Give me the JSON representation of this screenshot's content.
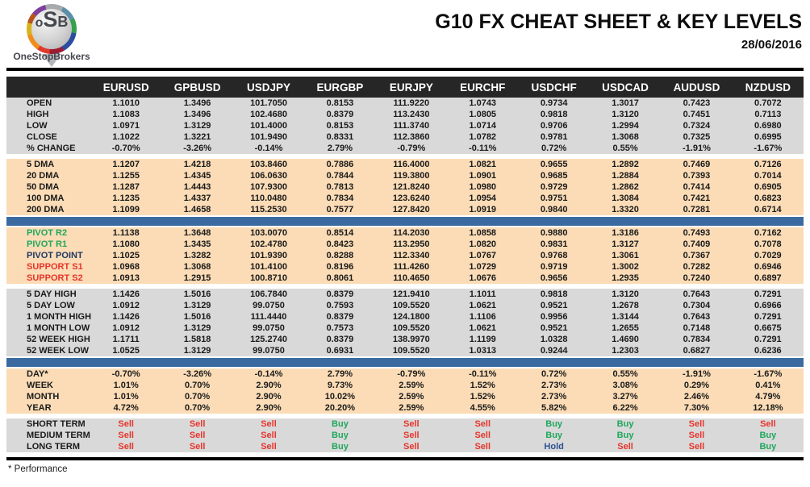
{
  "brand": {
    "logo_letters": [
      "o",
      "S",
      "B"
    ],
    "caption": "OneStopBrokers"
  },
  "header": {
    "title": "G10 FX CHEAT SHEET & KEY LEVELS",
    "date": "28/06/2016"
  },
  "table": {
    "columns": [
      "EURUSD",
      "GPBUSD",
      "USDJPY",
      "EURGBP",
      "EURJPY",
      "EURCHF",
      "USDCHF",
      "USDCAD",
      "AUDUSD",
      "NZDUSD"
    ],
    "sections": [
      {
        "id": "ohlc",
        "bg": "gray",
        "rows": [
          {
            "label": "OPEN",
            "values": [
              "1.1010",
              "1.3496",
              "101.7050",
              "0.8153",
              "111.9220",
              "1.0743",
              "0.9734",
              "1.3017",
              "0.7423",
              "0.7072"
            ]
          },
          {
            "label": "HIGH",
            "values": [
              "1.1083",
              "1.3496",
              "102.4680",
              "0.8379",
              "113.2430",
              "1.0805",
              "0.9818",
              "1.3120",
              "0.7451",
              "0.7113"
            ]
          },
          {
            "label": "LOW",
            "values": [
              "1.0971",
              "1.3129",
              "101.4000",
              "0.8153",
              "111.3740",
              "1.0714",
              "0.9706",
              "1.2994",
              "0.7324",
              "0.6980"
            ]
          },
          {
            "label": "CLOSE",
            "values": [
              "1.1022",
              "1.3221",
              "101.9490",
              "0.8331",
              "112.3860",
              "1.0782",
              "0.9781",
              "1.3068",
              "0.7325",
              "0.6995"
            ]
          },
          {
            "label": "% CHANGE",
            "values": [
              "-0.70%",
              "-3.26%",
              "-0.14%",
              "2.79%",
              "-0.79%",
              "-0.11%",
              "0.72%",
              "0.55%",
              "-1.91%",
              "-1.67%"
            ]
          }
        ]
      },
      {
        "id": "dma",
        "bg": "peach",
        "rows": [
          {
            "label": "5 DMA",
            "values": [
              "1.1207",
              "1.4218",
              "103.8460",
              "0.7886",
              "116.4000",
              "1.0821",
              "0.9655",
              "1.2892",
              "0.7469",
              "0.7126"
            ]
          },
          {
            "label": "20 DMA",
            "values": [
              "1.1255",
              "1.4345",
              "106.0630",
              "0.7844",
              "119.3800",
              "1.0901",
              "0.9685",
              "1.2884",
              "0.7393",
              "0.7014"
            ]
          },
          {
            "label": "50 DMA",
            "values": [
              "1.1287",
              "1.4443",
              "107.9300",
              "0.7813",
              "121.8240",
              "1.0980",
              "0.9729",
              "1.2862",
              "0.7414",
              "0.6905"
            ]
          },
          {
            "label": "100 DMA",
            "values": [
              "1.1235",
              "1.4337",
              "110.0480",
              "0.7834",
              "123.6240",
              "1.0954",
              "0.9751",
              "1.3084",
              "0.7421",
              "0.6823"
            ]
          },
          {
            "label": "200 DMA",
            "values": [
              "1.1099",
              "1.4658",
              "115.2530",
              "0.7577",
              "127.8420",
              "1.0919",
              "0.9840",
              "1.3320",
              "0.7281",
              "0.6714"
            ]
          }
        ]
      },
      {
        "divider": true
      },
      {
        "id": "pivots",
        "bg": "peach",
        "rows": [
          {
            "label": "PIVOT R2",
            "label_style": "green",
            "values": [
              "1.1138",
              "1.3648",
              "103.0070",
              "0.8514",
              "114.2030",
              "1.0858",
              "0.9880",
              "1.3186",
              "0.7493",
              "0.7162"
            ]
          },
          {
            "label": "PIVOT R1",
            "label_style": "green",
            "values": [
              "1.1080",
              "1.3435",
              "102.4780",
              "0.8423",
              "113.2950",
              "1.0820",
              "0.9831",
              "1.3127",
              "0.7409",
              "0.7078"
            ]
          },
          {
            "label": "PIVOT POINT",
            "label_style": "navy",
            "values": [
              "1.1025",
              "1.3282",
              "101.9390",
              "0.8288",
              "112.3340",
              "1.0767",
              "0.9768",
              "1.3061",
              "0.7367",
              "0.7029"
            ]
          },
          {
            "label": "SUPPORT S1",
            "label_style": "red",
            "values": [
              "1.0968",
              "1.3068",
              "101.4100",
              "0.8196",
              "111.4260",
              "1.0729",
              "0.9719",
              "1.3002",
              "0.7282",
              "0.6946"
            ]
          },
          {
            "label": "SUPPORT S2",
            "label_style": "red",
            "values": [
              "1.0913",
              "1.2915",
              "100.8710",
              "0.8061",
              "110.4650",
              "1.0676",
              "0.9656",
              "1.2935",
              "0.7240",
              "0.6897"
            ]
          }
        ]
      },
      {
        "id": "ranges",
        "bg": "gray",
        "rows": [
          {
            "label": "5 DAY HIGH",
            "values": [
              "1.1426",
              "1.5016",
              "106.7840",
              "0.8379",
              "121.9410",
              "1.1011",
              "0.9818",
              "1.3120",
              "0.7643",
              "0.7291"
            ]
          },
          {
            "label": "5 DAY LOW",
            "values": [
              "1.0912",
              "1.3129",
              "99.0750",
              "0.7593",
              "109.5520",
              "1.0621",
              "0.9521",
              "1.2678",
              "0.7304",
              "0.6966"
            ]
          },
          {
            "label": "1 MONTH HIGH",
            "values": [
              "1.1426",
              "1.5016",
              "111.4440",
              "0.8379",
              "124.1800",
              "1.1106",
              "0.9956",
              "1.3144",
              "0.7643",
              "0.7291"
            ]
          },
          {
            "label": "1 MONTH LOW",
            "values": [
              "1.0912",
              "1.3129",
              "99.0750",
              "0.7573",
              "109.5520",
              "1.0621",
              "0.9521",
              "1.2655",
              "0.7148",
              "0.6675"
            ]
          },
          {
            "label": "52 WEEK HIGH",
            "values": [
              "1.1711",
              "1.5818",
              "125.2740",
              "0.8379",
              "138.9970",
              "1.1199",
              "1.0328",
              "1.4690",
              "0.7834",
              "0.7291"
            ]
          },
          {
            "label": "52 WEEK LOW",
            "values": [
              "1.0525",
              "1.3129",
              "99.0750",
              "0.6931",
              "109.5520",
              "1.0313",
              "0.9244",
              "1.2303",
              "0.6827",
              "0.6236"
            ]
          }
        ]
      },
      {
        "divider": true
      },
      {
        "id": "performance",
        "bg": "peach",
        "rows": [
          {
            "label": "DAY*",
            "values": [
              "-0.70%",
              "-3.26%",
              "-0.14%",
              "2.79%",
              "-0.79%",
              "-0.11%",
              "0.72%",
              "0.55%",
              "-1.91%",
              "-1.67%"
            ]
          },
          {
            "label": "WEEK",
            "values": [
              "1.01%",
              "0.70%",
              "2.90%",
              "9.73%",
              "2.59%",
              "1.52%",
              "2.73%",
              "3.08%",
              "0.29%",
              "0.41%"
            ]
          },
          {
            "label": "MONTH",
            "values": [
              "1.01%",
              "0.70%",
              "2.90%",
              "10.02%",
              "2.59%",
              "1.52%",
              "2.73%",
              "3.27%",
              "2.46%",
              "4.79%"
            ]
          },
          {
            "label": "YEAR",
            "values": [
              "4.72%",
              "0.70%",
              "2.90%",
              "20.20%",
              "2.59%",
              "4.55%",
              "5.82%",
              "6.22%",
              "7.30%",
              "12.18%"
            ]
          }
        ]
      },
      {
        "id": "signals",
        "bg": "gray",
        "type": "signals",
        "rows": [
          {
            "label": "SHORT TERM",
            "values": [
              "Sell",
              "Sell",
              "Sell",
              "Buy",
              "Sell",
              "Sell",
              "Buy",
              "Buy",
              "Sell",
              "Sell"
            ]
          },
          {
            "label": "MEDIUM TERM",
            "values": [
              "Sell",
              "Sell",
              "Sell",
              "Buy",
              "Sell",
              "Sell",
              "Buy",
              "Buy",
              "Sell",
              "Buy"
            ]
          },
          {
            "label": "LONG TERM",
            "values": [
              "Sell",
              "Sell",
              "Sell",
              "Buy",
              "Sell",
              "Sell",
              "Hold",
              "Sell",
              "Sell",
              "Buy"
            ]
          }
        ]
      }
    ]
  },
  "footer": {
    "note": "* Performance"
  },
  "colors": {
    "buy_green": "#1fa75c",
    "sell_red": "#e6352b",
    "hold_blue": "#2c5192",
    "pivot_resistance_green": "#1fa75c",
    "pivot_point_navy": "#203864",
    "support_red": "#e6352b",
    "section_gray": "#d9d9d9",
    "section_peach": "#fbdcb6",
    "divider_blue": "#3b6aa0",
    "header_bg": "#262626",
    "header_text": "#ffffff"
  }
}
